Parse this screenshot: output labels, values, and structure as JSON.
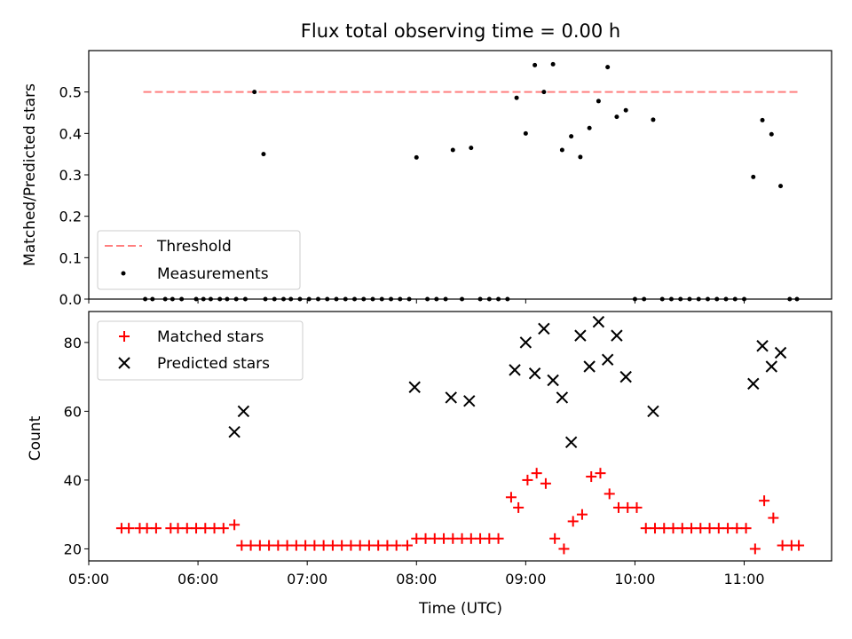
{
  "chart_data": [
    {
      "type": "scatter",
      "title": "Flux total observing time = 0.00 h",
      "xlabel": "",
      "ylabel": "Matched/Predicted stars",
      "xlim": [
        "05:00",
        "11:48"
      ],
      "ylim": [
        0,
        0.6
      ],
      "yticks": [
        "0.0",
        "0.1",
        "0.2",
        "0.3",
        "0.4",
        "0.5"
      ],
      "legend_position": "lower-left",
      "series": [
        {
          "name": "Threshold",
          "kind": "dashed-line",
          "color": "#ff7f7f",
          "points": [
            [
              "05:30",
              0.5
            ],
            [
              "11:30",
              0.5
            ]
          ]
        },
        {
          "name": "Measurements",
          "kind": "dot",
          "color": "#000000",
          "points": [
            [
              "05:31",
              0
            ],
            [
              "05:35",
              0
            ],
            [
              "05:42",
              0
            ],
            [
              "05:46",
              0
            ],
            [
              "05:51",
              0
            ],
            [
              "05:59",
              0
            ],
            [
              "06:03",
              0
            ],
            [
              "06:07",
              0
            ],
            [
              "06:12",
              0
            ],
            [
              "06:16",
              0
            ],
            [
              "06:21",
              0
            ],
            [
              "06:26",
              0
            ],
            [
              "06:31",
              0.5
            ],
            [
              "06:36",
              0.35
            ],
            [
              "06:37",
              0
            ],
            [
              "06:42",
              0
            ],
            [
              "06:47",
              0
            ],
            [
              "06:51",
              0
            ],
            [
              "06:56",
              0
            ],
            [
              "07:01",
              0
            ],
            [
              "07:06",
              0
            ],
            [
              "07:11",
              0
            ],
            [
              "07:16",
              0
            ],
            [
              "07:21",
              0
            ],
            [
              "07:26",
              0
            ],
            [
              "07:31",
              0
            ],
            [
              "07:36",
              0
            ],
            [
              "07:41",
              0
            ],
            [
              "07:46",
              0
            ],
            [
              "07:51",
              0
            ],
            [
              "07:56",
              0
            ],
            [
              "08:00",
              0.342
            ],
            [
              "08:06",
              0
            ],
            [
              "08:11",
              0
            ],
            [
              "08:16",
              0
            ],
            [
              "08:20",
              0.36
            ],
            [
              "08:25",
              0
            ],
            [
              "08:30",
              0.365
            ],
            [
              "08:35",
              0
            ],
            [
              "08:40",
              0
            ],
            [
              "08:45",
              0
            ],
            [
              "08:50",
              0
            ],
            [
              "08:55",
              0.486
            ],
            [
              "09:00",
              0.4
            ],
            [
              "09:05",
              0.565
            ],
            [
              "09:10",
              0.5
            ],
            [
              "09:15",
              0.567
            ],
            [
              "09:20",
              0.36
            ],
            [
              "09:25",
              0.393
            ],
            [
              "09:30",
              0.343
            ],
            [
              "09:35",
              0.413
            ],
            [
              "09:40",
              0.478
            ],
            [
              "09:45",
              0.56
            ],
            [
              "09:50",
              0.44
            ],
            [
              "09:55",
              0.456
            ],
            [
              "10:00",
              0
            ],
            [
              "10:05",
              0
            ],
            [
              "10:10",
              0.433
            ],
            [
              "10:15",
              0
            ],
            [
              "10:20",
              0
            ],
            [
              "10:25",
              0
            ],
            [
              "10:30",
              0
            ],
            [
              "10:35",
              0
            ],
            [
              "10:40",
              0
            ],
            [
              "10:45",
              0
            ],
            [
              "10:50",
              0
            ],
            [
              "10:55",
              0
            ],
            [
              "11:00",
              0
            ],
            [
              "11:05",
              0.295
            ],
            [
              "11:10",
              0.432
            ],
            [
              "11:15",
              0.398
            ],
            [
              "11:20",
              0.273
            ],
            [
              "11:25",
              0
            ],
            [
              "11:29",
              0
            ]
          ]
        }
      ]
    },
    {
      "type": "scatter",
      "title": "",
      "xlabel": "Time (UTC)",
      "ylabel": "Count",
      "xlim": [
        "05:00",
        "11:48"
      ],
      "ylim": [
        16.5,
        89
      ],
      "xticks": [
        "05:00",
        "06:00",
        "07:00",
        "08:00",
        "09:00",
        "10:00",
        "11:00"
      ],
      "yticks": [
        "20",
        "40",
        "60",
        "80"
      ],
      "legend_position": "upper-left",
      "series": [
        {
          "name": "Matched stars",
          "kind": "plus",
          "color": "#ff0000",
          "points": [
            [
              "05:18",
              26
            ],
            [
              "05:22",
              26
            ],
            [
              "05:28",
              26
            ],
            [
              "05:32",
              26
            ],
            [
              "05:37",
              26
            ],
            [
              "05:45",
              26
            ],
            [
              "05:49",
              26
            ],
            [
              "05:54",
              26
            ],
            [
              "05:59",
              26
            ],
            [
              "06:04",
              26
            ],
            [
              "06:09",
              26
            ],
            [
              "06:14",
              26
            ],
            [
              "06:20",
              27
            ],
            [
              "06:24",
              21
            ],
            [
              "06:29",
              21
            ],
            [
              "06:34",
              21
            ],
            [
              "06:39",
              21
            ],
            [
              "06:44",
              21
            ],
            [
              "06:49",
              21
            ],
            [
              "06:54",
              21
            ],
            [
              "06:59",
              21
            ],
            [
              "07:04",
              21
            ],
            [
              "07:09",
              21
            ],
            [
              "07:14",
              21
            ],
            [
              "07:19",
              21
            ],
            [
              "07:24",
              21
            ],
            [
              "07:29",
              21
            ],
            [
              "07:34",
              21
            ],
            [
              "07:39",
              21
            ],
            [
              "07:44",
              21
            ],
            [
              "07:49",
              21
            ],
            [
              "07:55",
              21
            ],
            [
              "08:00",
              23
            ],
            [
              "08:05",
              23
            ],
            [
              "08:10",
              23
            ],
            [
              "08:15",
              23
            ],
            [
              "08:20",
              23
            ],
            [
              "08:25",
              23
            ],
            [
              "08:30",
              23
            ],
            [
              "08:35",
              23
            ],
            [
              "08:40",
              23
            ],
            [
              "08:45",
              23
            ],
            [
              "08:52",
              35
            ],
            [
              "08:56",
              32
            ],
            [
              "09:01",
              40
            ],
            [
              "09:06",
              42
            ],
            [
              "09:11",
              39
            ],
            [
              "09:16",
              23
            ],
            [
              "09:21",
              20
            ],
            [
              "09:26",
              28
            ],
            [
              "09:31",
              30
            ],
            [
              "09:36",
              41
            ],
            [
              "09:41",
              42
            ],
            [
              "09:46",
              36
            ],
            [
              "09:51",
              32
            ],
            [
              "09:56",
              32
            ],
            [
              "10:01",
              32
            ],
            [
              "10:06",
              26
            ],
            [
              "10:11",
              26
            ],
            [
              "10:16",
              26
            ],
            [
              "10:21",
              26
            ],
            [
              "10:26",
              26
            ],
            [
              "10:31",
              26
            ],
            [
              "10:36",
              26
            ],
            [
              "10:41",
              26
            ],
            [
              "10:46",
              26
            ],
            [
              "10:51",
              26
            ],
            [
              "10:56",
              26
            ],
            [
              "11:01",
              26
            ],
            [
              "11:06",
              20
            ],
            [
              "11:11",
              34
            ],
            [
              "11:16",
              29
            ],
            [
              "11:21",
              21
            ],
            [
              "11:26",
              21
            ],
            [
              "11:30",
              21
            ]
          ]
        },
        {
          "name": "Predicted stars",
          "kind": "x",
          "color": "#000000",
          "points": [
            [
              "06:20",
              54
            ],
            [
              "06:25",
              60
            ],
            [
              "07:59",
              67
            ],
            [
              "08:19",
              64
            ],
            [
              "08:29",
              63
            ],
            [
              "08:54",
              72
            ],
            [
              "09:00",
              80
            ],
            [
              "09:05",
              71
            ],
            [
              "09:10",
              84
            ],
            [
              "09:15",
              69
            ],
            [
              "09:20",
              64
            ],
            [
              "09:25",
              51
            ],
            [
              "09:30",
              82
            ],
            [
              "09:35",
              73
            ],
            [
              "09:40",
              86
            ],
            [
              "09:45",
              75
            ],
            [
              "09:50",
              82
            ],
            [
              "09:55",
              70
            ],
            [
              "10:10",
              60
            ],
            [
              "11:05",
              68
            ],
            [
              "11:10",
              79
            ],
            [
              "11:15",
              73
            ],
            [
              "11:20",
              77
            ]
          ]
        }
      ]
    }
  ]
}
